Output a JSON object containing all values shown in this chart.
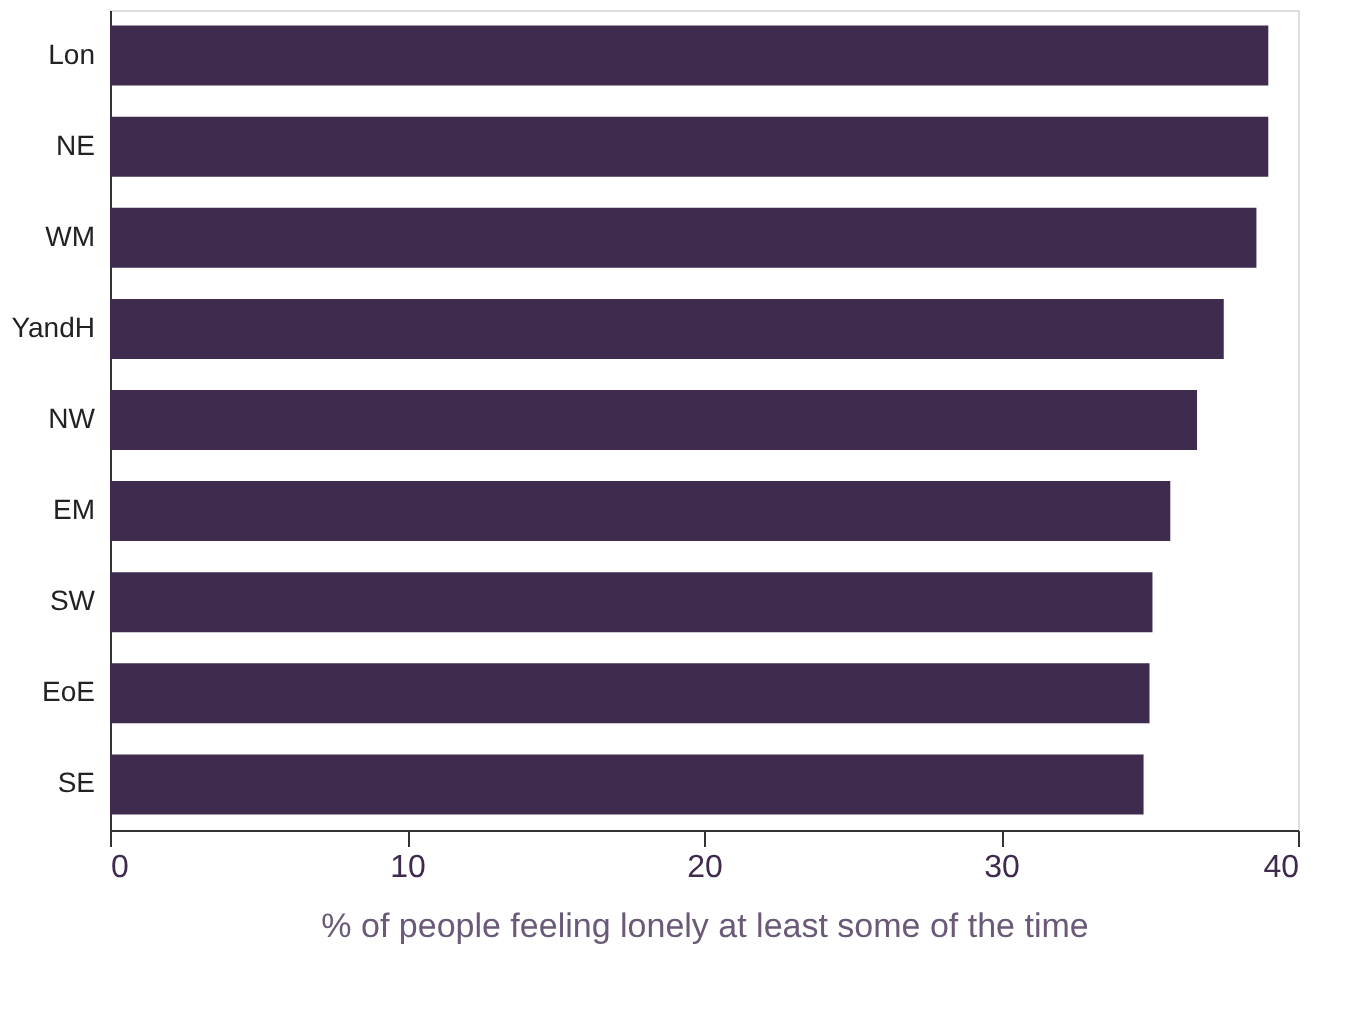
{
  "chart_data": {
    "type": "bar",
    "orientation": "horizontal",
    "xlabel": "% of people feeling lonely at least some of the time",
    "categories": [
      "Lon",
      "NE",
      "WM",
      "YandH",
      "NW",
      "EM",
      "SW",
      "EoE",
      "SE"
    ],
    "values": [
      39.0,
      39.0,
      38.6,
      37.5,
      36.6,
      35.7,
      35.1,
      35.0,
      34.8
    ],
    "color": "#3f2b4e",
    "xlim": [
      0,
      40
    ],
    "xticks": [
      0,
      10,
      20,
      30,
      40
    ],
    "grid": false
  }
}
